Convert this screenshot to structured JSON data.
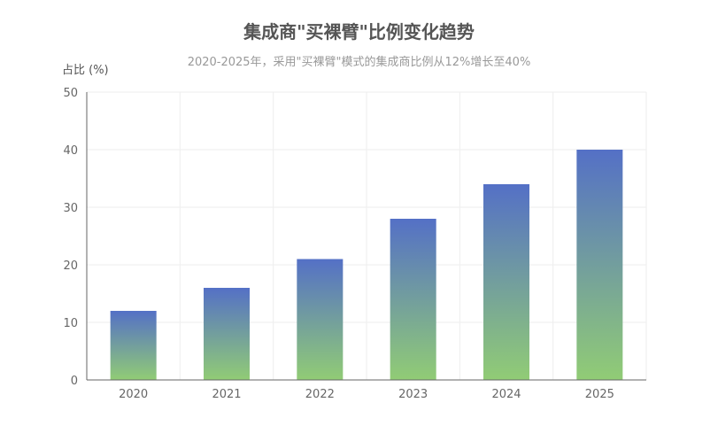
{
  "chart_data": {
    "type": "bar",
    "title": "集成商\"买裸臂\"比例变化趋势",
    "subtitle": "2020-2025年，采用\"买裸臂\"模式的集成商比例从12%增长至40%",
    "xlabel": "",
    "ylabel": "占比 (%)",
    "categories": [
      "2020",
      "2021",
      "2022",
      "2023",
      "2024",
      "2025"
    ],
    "values": [
      12,
      16,
      21,
      28,
      34,
      40
    ],
    "ylim": [
      0,
      50
    ],
    "yticks": [
      0,
      10,
      20,
      30,
      40,
      50
    ],
    "grid": true,
    "legend": null,
    "colors": {
      "bar_top": "#5470c6",
      "bar_bottom": "#91cc75",
      "grid": "#eeeeee",
      "axis": "#666666",
      "text": "#666666"
    }
  }
}
